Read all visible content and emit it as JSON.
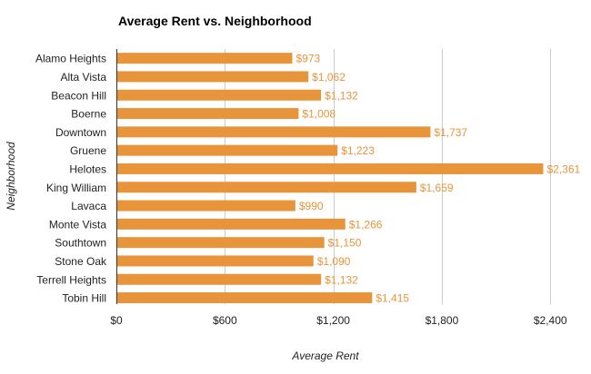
{
  "chart_data": {
    "type": "bar",
    "orientation": "horizontal",
    "title": "Average Rent vs. Neighborhood",
    "xlabel": "Average Rent",
    "ylabel": "Neighborhood",
    "xlim": [
      0,
      2600
    ],
    "grid": true,
    "legend": "none",
    "bar_color": "#e8943a",
    "label_color": "#e8943a",
    "grid_color": "#cccccc",
    "x_ticks": [
      0,
      600,
      1200,
      1800,
      2400
    ],
    "x_tick_labels": [
      "$0",
      "$600",
      "$1,200",
      "$1,800",
      "$2,400"
    ],
    "categories": [
      "Alamo Heights",
      "Alta Vista",
      "Beacon Hill",
      "Boerne",
      "Downtown",
      "Gruene",
      "Helotes",
      "King William",
      "Lavaca",
      "Monte Vista",
      "Southtown",
      "Stone Oak",
      "Terrell Heights",
      "Tobin Hill"
    ],
    "values": [
      973,
      1062,
      1132,
      1008,
      1737,
      1223,
      2361,
      1659,
      990,
      1266,
      1150,
      1090,
      1132,
      1415
    ],
    "data_labels": [
      "$973",
      "$1,062",
      "$1,132",
      "$1,008",
      "$1,737",
      "$1,223",
      "$2,361",
      "$1,659",
      "$990",
      "$1,266",
      "$1,150",
      "$1,090",
      "$1,132",
      "$1,415"
    ]
  }
}
